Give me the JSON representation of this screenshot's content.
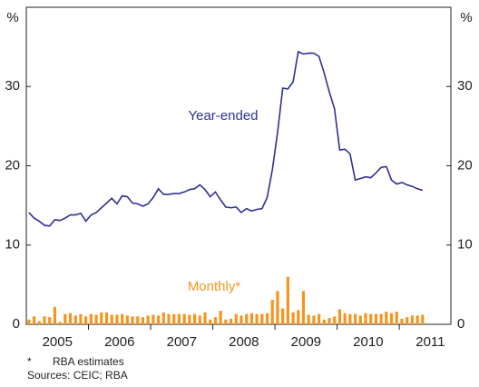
{
  "chart_data": {
    "type": "combo",
    "ylabel": "%",
    "y2label": "%",
    "ylim": [
      0,
      40
    ],
    "yticks": [
      0,
      10,
      20,
      30
    ],
    "y2lim": [
      0,
      40
    ],
    "y2ticks": [
      0,
      10,
      20,
      30
    ],
    "xlim": [
      2005,
      2011.83
    ],
    "xticks": [
      {
        "value": 2005.5,
        "label": "2005"
      },
      {
        "value": 2006.5,
        "label": "2006"
      },
      {
        "value": 2007.5,
        "label": "2007"
      },
      {
        "value": 2008.5,
        "label": "2008"
      },
      {
        "value": 2009.5,
        "label": "2009"
      },
      {
        "value": 2010.5,
        "label": "2010"
      },
      {
        "value": 2011.5,
        "label": "2011"
      }
    ],
    "x": [
      2005.042,
      2005.125,
      2005.208,
      2005.292,
      2005.375,
      2005.458,
      2005.542,
      2005.625,
      2005.708,
      2005.792,
      2005.875,
      2005.958,
      2006.042,
      2006.125,
      2006.208,
      2006.292,
      2006.375,
      2006.458,
      2006.542,
      2006.625,
      2006.708,
      2006.792,
      2006.875,
      2006.958,
      2007.042,
      2007.125,
      2007.208,
      2007.292,
      2007.375,
      2007.458,
      2007.542,
      2007.625,
      2007.708,
      2007.792,
      2007.875,
      2007.958,
      2008.042,
      2008.125,
      2008.208,
      2008.292,
      2008.375,
      2008.458,
      2008.542,
      2008.625,
      2008.708,
      2008.792,
      2008.875,
      2008.958,
      2009.042,
      2009.125,
      2009.208,
      2009.292,
      2009.375,
      2009.458,
      2009.542,
      2009.625,
      2009.708,
      2009.792,
      2009.875,
      2009.958,
      2010.042,
      2010.125,
      2010.208,
      2010.292,
      2010.375,
      2010.458,
      2010.542,
      2010.625,
      2010.708,
      2010.792,
      2010.875,
      2010.958,
      2011.042,
      2011.125,
      2011.208,
      2011.292,
      2011.375
    ],
    "series": [
      {
        "name": "Year-ended",
        "type": "line",
        "color": "#2e3192",
        "axis": "y",
        "values": [
          14.1,
          13.4,
          13.0,
          12.5,
          12.4,
          13.2,
          13.1,
          13.4,
          13.8,
          13.8,
          14.0,
          13.0,
          13.8,
          14.1,
          14.7,
          15.3,
          15.9,
          15.2,
          16.2,
          16.1,
          15.3,
          15.2,
          14.9,
          15.2,
          16.0,
          17.1,
          16.4,
          16.4,
          16.5,
          16.5,
          16.7,
          17.0,
          17.1,
          17.6,
          17.0,
          16.1,
          16.7,
          15.7,
          14.8,
          14.7,
          14.8,
          14.1,
          14.6,
          14.3,
          14.5,
          14.6,
          16.0,
          19.5,
          24.2,
          29.8,
          29.7,
          30.6,
          34.4,
          34.1,
          34.2,
          34.2,
          33.8,
          31.7,
          29.3,
          27.2,
          22.0,
          22.1,
          21.5,
          18.2,
          18.4,
          18.6,
          18.5,
          19.1,
          19.8,
          19.9,
          18.2,
          17.7,
          17.9,
          17.6,
          17.4,
          17.1,
          16.9
        ]
      },
      {
        "name": "Monthly*",
        "type": "bar",
        "color": "#f7941d",
        "axis": "y",
        "values": [
          0.6,
          1.0,
          0.4,
          1.0,
          0.9,
          2.2,
          0.3,
          1.3,
          1.4,
          1.1,
          1.3,
          1.0,
          1.3,
          1.2,
          1.5,
          1.5,
          1.2,
          1.2,
          1.3,
          1.1,
          1.0,
          1.0,
          0.9,
          1.1,
          1.2,
          1.1,
          1.5,
          1.3,
          1.3,
          1.3,
          1.3,
          1.2,
          1.3,
          1.1,
          1.5,
          0.6,
          0.9,
          1.7,
          0.6,
          0.7,
          1.3,
          1.1,
          1.3,
          1.4,
          1.3,
          1.3,
          1.4,
          3.1,
          4.2,
          2.0,
          6.0,
          1.5,
          1.8,
          4.2,
          1.2,
          1.1,
          1.3,
          0.6,
          0.8,
          1.0,
          1.9,
          1.4,
          1.3,
          1.3,
          1.1,
          1.4,
          1.3,
          1.3,
          1.3,
          1.6,
          1.4,
          1.6,
          0.7,
          0.9,
          1.1,
          1.1,
          1.2
        ]
      }
    ],
    "notes": [
      "*",
      "RBA estimates",
      "Sources: CEIC; RBA"
    ]
  }
}
